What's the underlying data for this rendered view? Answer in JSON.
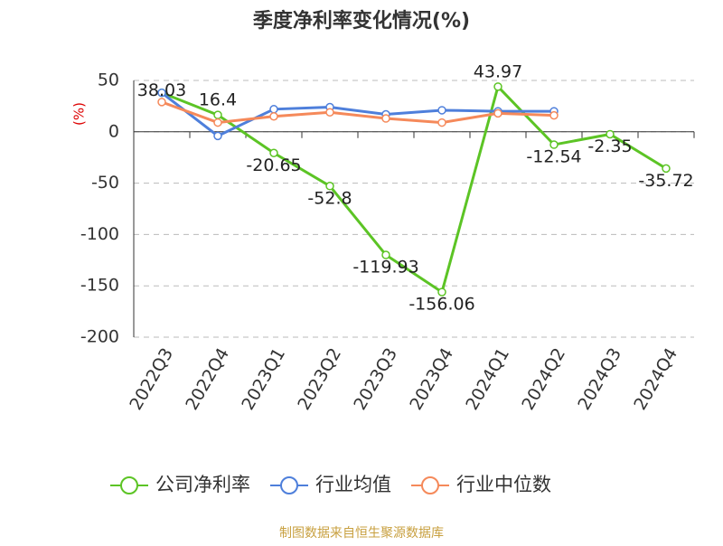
{
  "chart_data": {
    "type": "line",
    "title": "季度净利率变化情况(%)",
    "y_label": "(%)",
    "categories": [
      "2022Q3",
      "2022Q4",
      "2023Q1",
      "2023Q2",
      "2023Q3",
      "2023Q4",
      "2024Q1",
      "2024Q2",
      "2024Q3",
      "2024Q4"
    ],
    "series": [
      {
        "name": "公司净利率",
        "color": "#5cc425",
        "values": [
          38.03,
          16.4,
          -20.65,
          -52.8,
          -119.93,
          -156.06,
          43.97,
          -12.54,
          -2.35,
          -35.72
        ],
        "show_labels": true
      },
      {
        "name": "行业均值",
        "color": "#4e7fdb",
        "values": [
          38,
          -4,
          22,
          24,
          17,
          21,
          20,
          20,
          null,
          null
        ]
      },
      {
        "name": "行业中位数",
        "color": "#f5895a",
        "values": [
          29,
          9,
          15,
          19,
          13,
          9,
          18,
          16,
          null,
          null
        ]
      }
    ],
    "ylim": [
      -200,
      50
    ],
    "yticks": [
      50,
      0,
      -50,
      -100,
      -150,
      -200
    ],
    "grid": true,
    "source": "制图数据来自恒生聚源数据库"
  }
}
